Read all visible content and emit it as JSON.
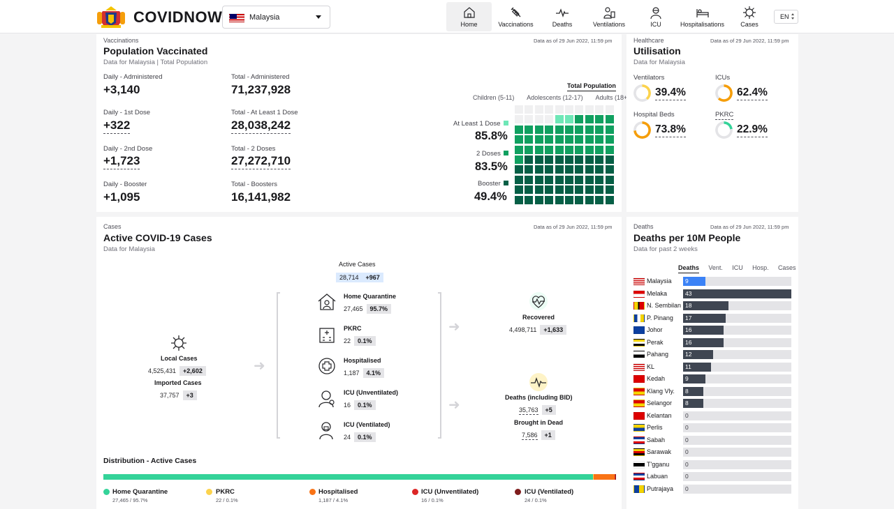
{
  "header": {
    "brand": "COVIDNOW",
    "country": "Malaysia",
    "lang": "EN",
    "nav": [
      {
        "label": "Home",
        "icon": "home-icon",
        "active": true
      },
      {
        "label": "Vaccinations",
        "icon": "syringe-icon"
      },
      {
        "label": "Deaths",
        "icon": "pulse-icon"
      },
      {
        "label": "Ventilations",
        "icon": "ventilator-icon"
      },
      {
        "label": "ICU",
        "icon": "icu-icon"
      },
      {
        "label": "Hospitalisations",
        "icon": "bed-icon"
      },
      {
        "label": "Cases",
        "icon": "virus-icon"
      }
    ]
  },
  "vacc": {
    "kicker": "Vaccinations",
    "title": "Population Vaccinated",
    "subtitle": "Data for Malaysia | Total Population",
    "as_of": "Data as of 29 Jun 2022, 11:59 pm",
    "stats": [
      {
        "label": "Daily - Administered",
        "value": "+3,140"
      },
      {
        "label": "Total - Administered",
        "value": "71,237,928"
      },
      {
        "label": "Daily - 1st Dose",
        "value": "+322"
      },
      {
        "label": "Total - At Least 1 Dose",
        "value": "28,038,242"
      },
      {
        "label": "Daily - 2nd Dose",
        "value": "+1,723"
      },
      {
        "label": "Total - 2 Doses",
        "value": "27,272,710"
      },
      {
        "label": "Daily - Booster",
        "value": "+1,095"
      },
      {
        "label": "Total - Boosters",
        "value": "16,141,982"
      }
    ],
    "total_tab": "Total Population",
    "age_tabs": [
      "Children (5-11)",
      "Adolescents (12-17)",
      "Adults (18+)"
    ],
    "legend": [
      {
        "label": "At Least 1 Dose",
        "pct": "85.8%",
        "value": 85.8,
        "color": "#6ee7b7"
      },
      {
        "label": "2 Doses",
        "pct": "83.5%",
        "value": 83.5,
        "color": "#10a060"
      },
      {
        "label": "Booster",
        "pct": "49.4%",
        "value": 49.4,
        "color": "#065f46"
      }
    ]
  },
  "health": {
    "kicker": "Healthcare",
    "title": "Utilisation",
    "subtitle": "Data for Malaysia",
    "as_of": "Data as of 29 Jun 2022, 11:59 pm",
    "items": [
      {
        "label": "Ventilators",
        "pct": "39.4%",
        "value": 39.4,
        "color": "#fcd34d"
      },
      {
        "label": "ICUs",
        "pct": "62.4%",
        "value": 62.4,
        "color": "#f59e0b"
      },
      {
        "label": "Hospital Beds",
        "pct": "73.8%",
        "value": 73.8,
        "color": "#f59e0b"
      },
      {
        "label": "PKRC",
        "pct": "22.9%",
        "value": 22.9,
        "color": "#34d399"
      }
    ]
  },
  "cases": {
    "kicker": "Cases",
    "title": "Active COVID-19 Cases",
    "subtitle": "Data for Malaysia",
    "as_of": "Data as of 29 Jun 2022, 11:59 pm",
    "active": {
      "label": "Active Cases",
      "value": "28,714",
      "delta": "+967"
    },
    "local": {
      "label": "Local Cases",
      "value": "4,525,431",
      "delta": "+2,602"
    },
    "imported": {
      "label": "Imported Cases",
      "value": "37,757",
      "delta": "+3"
    },
    "breakdown": [
      {
        "label": "Home Quarantine",
        "value": "27,465",
        "pct": "95.7%",
        "icon": "house-icon"
      },
      {
        "label": "PKRC",
        "value": "22",
        "pct": "0.1%",
        "icon": "building-icon"
      },
      {
        "label": "Hospitalised",
        "value": "1,187",
        "pct": "4.1%",
        "icon": "medical-cross-icon"
      },
      {
        "label": "ICU (Unventilated)",
        "value": "16",
        "pct": "0.1%",
        "icon": "doctor-icon"
      },
      {
        "label": "ICU (Ventilated)",
        "value": "24",
        "pct": "0.1%",
        "icon": "ventilated-patient-icon"
      }
    ],
    "recovered": {
      "label": "Recovered",
      "value": "4,498,711",
      "delta": "+1,633"
    },
    "deaths": {
      "label": "Deaths (including BID)",
      "value": "35,763",
      "delta": "+5"
    },
    "bid": {
      "label": "Brought in Dead",
      "value": "7,586",
      "delta": "+1"
    },
    "dist_title": "Distribution - Active Cases",
    "dist": [
      {
        "label": "Home Quarantine",
        "sub": "27,465 / 95.7%",
        "value": 95.7,
        "color": "#34d399"
      },
      {
        "label": "PKRC",
        "sub": "22 / 0.1%",
        "value": 0.1,
        "color": "#fcd34d"
      },
      {
        "label": "Hospitalised",
        "sub": "1,187 / 4.1%",
        "value": 4.1,
        "color": "#f97316"
      },
      {
        "label": "ICU (Unventilated)",
        "sub": "16 / 0.1%",
        "value": 0.1,
        "color": "#dc2626"
      },
      {
        "label": "ICU (Ventilated)",
        "sub": "24 / 0.1%",
        "value": 0.1,
        "color": "#7f1d1d"
      }
    ]
  },
  "deaths_panel": {
    "kicker": "Deaths",
    "title": "Deaths per 10M People",
    "subtitle": "Data for past 2 weeks",
    "as_of": "Data as of 29 Jun 2022, 11:59 pm",
    "tabs": [
      "Deaths",
      "Vent.",
      "ICU",
      "Hosp.",
      "Cases"
    ],
    "chart_data": {
      "type": "bar",
      "orientation": "horizontal",
      "categories": [
        "Malaysia",
        "Melaka",
        "N. Sembilan",
        "P. Pinang",
        "Johor",
        "Perak",
        "Pahang",
        "KL",
        "Kedah",
        "Klang Vly.",
        "Selangor",
        "Kelantan",
        "Perlis",
        "Sabah",
        "Sarawak",
        "T'gganu",
        "Labuan",
        "Putrajaya"
      ],
      "values": [
        9,
        43,
        18,
        17,
        16,
        16,
        12,
        11,
        9,
        8,
        8,
        0,
        0,
        0,
        0,
        0,
        0,
        0
      ],
      "xlim": [
        0,
        43
      ]
    }
  }
}
